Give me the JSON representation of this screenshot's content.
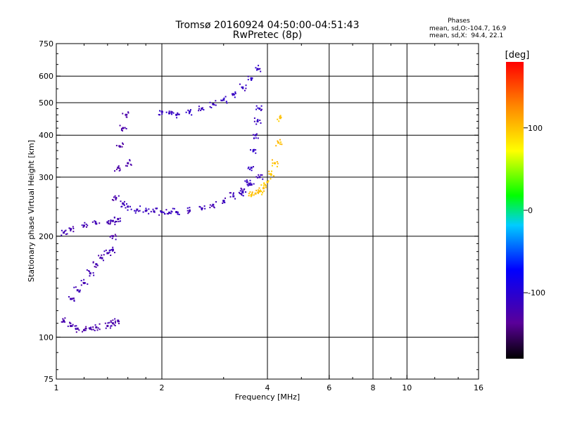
{
  "chart_data": {
    "type": "scatter",
    "title": "Tromsø 20160924 04:50:00-04:51:43",
    "subtitle": "RwPretec (8p)",
    "xlabel": "Frequency [MHz]",
    "ylabel": "Stationary phase Virtual Height [km]",
    "xscale": "log",
    "yscale": "log",
    "xlim": [
      1,
      16
    ],
    "ylim": [
      75,
      750
    ],
    "xticks": [
      "1",
      "2",
      "4",
      "6",
      "8",
      "10",
      "16"
    ],
    "yticks": [
      "75",
      "100",
      "200",
      "300",
      "400",
      "500",
      "600",
      "750"
    ],
    "grid": true,
    "phases_box": {
      "title": "Phases",
      "line1": "mean, sd,O:-104.7, 16.9",
      "line2": "mean, sd,X:  94.4, 22.1"
    },
    "colorbar": {
      "label": "[deg]",
      "min": -180,
      "max": 180,
      "ticks": [
        "100",
        "0",
        "-100"
      ],
      "tick_values": [
        100,
        0,
        -100
      ]
    },
    "series": [
      {
        "traces": [
          {
            "x": [
              1.05,
              1.1,
              1.2,
              1.3,
              1.4,
              1.45,
              1.5
            ],
            "y": [
              205,
              210,
              215,
              218,
              220,
              222,
              225
            ],
            "phase": -120
          },
          {
            "x": [
              1.05,
              1.1,
              1.15,
              1.2,
              1.25,
              1.3,
              1.4,
              1.45,
              1.5
            ],
            "y": [
              112,
              108,
              106,
              105,
              106,
              107,
              108,
              110,
              112
            ],
            "phase": -125
          },
          {
            "x": [
              1.1,
              1.15,
              1.2,
              1.25,
              1.3,
              1.35,
              1.4,
              1.45
            ],
            "y": [
              130,
              138,
              145,
              155,
              165,
              172,
              178,
              182
            ],
            "phase": -120
          },
          {
            "x": [
              1.45,
              1.48,
              1.5,
              1.52,
              1.55,
              1.58,
              1.6
            ],
            "y": [
              200,
              260,
              320,
              370,
              420,
              460,
              330
            ],
            "phase": -125
          },
          {
            "x": [
              1.55,
              1.6,
              1.7,
              1.8,
              1.9,
              2.0,
              2.1,
              2.2,
              2.4,
              2.6,
              2.8,
              3.0,
              3.2,
              3.4,
              3.6,
              3.8
            ],
            "y": [
              250,
              245,
              240,
              238,
              237,
              236,
              235,
              236,
              238,
              242,
              248,
              255,
              263,
              272,
              285,
              300
            ],
            "phase": -115
          },
          {
            "x": [
              2.4,
              2.6,
              2.8,
              3.0,
              3.2,
              3.4,
              3.6,
              3.75
            ],
            "y": [
              470,
              480,
              495,
              510,
              530,
              555,
              590,
              630
            ],
            "phase": -110
          },
          {
            "x": [
              2.0,
              2.1,
              2.2
            ],
            "y": [
              470,
              465,
              460
            ],
            "phase": -110
          },
          {
            "x": [
              3.4,
              3.5,
              3.6,
              3.65,
              3.7,
              3.75,
              3.8
            ],
            "y": [
              270,
              290,
              320,
              360,
              400,
              440,
              480
            ],
            "phase": -110
          },
          {
            "x": [
              3.6,
              3.7,
              3.8,
              3.9,
              4.0,
              4.1,
              4.2,
              4.3,
              4.35
            ],
            "y": [
              265,
              268,
              272,
              278,
              290,
              305,
              330,
              380,
              450
            ],
            "phase": 100
          }
        ]
      }
    ]
  }
}
